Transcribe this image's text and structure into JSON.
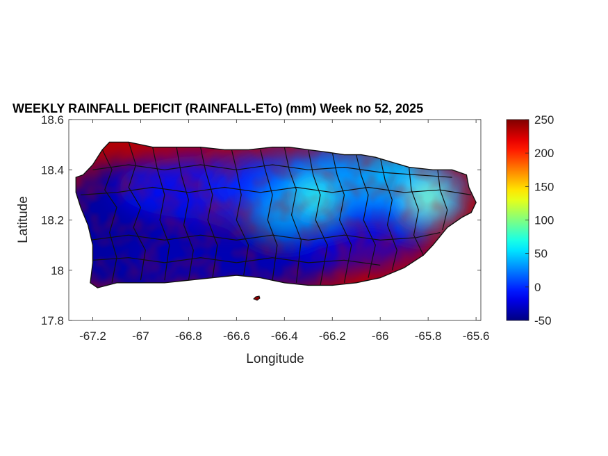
{
  "figure": {
    "title": "WEEKLY RAINFALL DEFICIT (RAINFALL-ETo) (mm) Week no 52, 2025",
    "xlabel": "Longitude",
    "ylabel": "Latitude"
  },
  "chart_data": {
    "type": "heatmap",
    "title": "WEEKLY RAINFALL DEFICIT (RAINFALL-ETo) (mm) Week no 52, 2025",
    "xlabel": "Longitude",
    "ylabel": "Latitude",
    "xlim": [
      -67.3,
      -65.58
    ],
    "ylim": [
      17.8,
      18.6
    ],
    "xticks": [
      "-67.2",
      "-67",
      "-66.8",
      "-66.6",
      "-66.4",
      "-66.2",
      "-66",
      "-65.8",
      "-65.6"
    ],
    "xtick_values": [
      -67.2,
      -67.0,
      -66.8,
      -66.6,
      -66.4,
      -66.2,
      -66.0,
      -65.8,
      -65.6
    ],
    "yticks": [
      "17.8",
      "18",
      "18.2",
      "18.4",
      "18.6"
    ],
    "ytick_values": [
      17.8,
      18.0,
      18.2,
      18.4,
      18.6
    ],
    "colorbar": {
      "min": -50,
      "max": 250,
      "ticks": [
        "-50",
        "0",
        "50",
        "100",
        "150",
        "200",
        "250"
      ],
      "tick_values": [
        -50,
        0,
        50,
        100,
        150,
        200,
        250
      ],
      "colormap": "jet"
    },
    "hotspots": [
      {
        "lon": -66.28,
        "lat": 18.29,
        "value": 85
      },
      {
        "lon": -65.8,
        "lat": 18.29,
        "value": 115
      },
      {
        "lon": -66.05,
        "lat": 18.36,
        "value": 45
      },
      {
        "lon": -66.4,
        "lat": 18.24,
        "value": 35
      },
      {
        "lon": -65.92,
        "lat": 18.4,
        "value": 40
      },
      {
        "lon": -66.15,
        "lat": 18.38,
        "value": 30
      }
    ],
    "background_value": -40,
    "grid": false
  }
}
